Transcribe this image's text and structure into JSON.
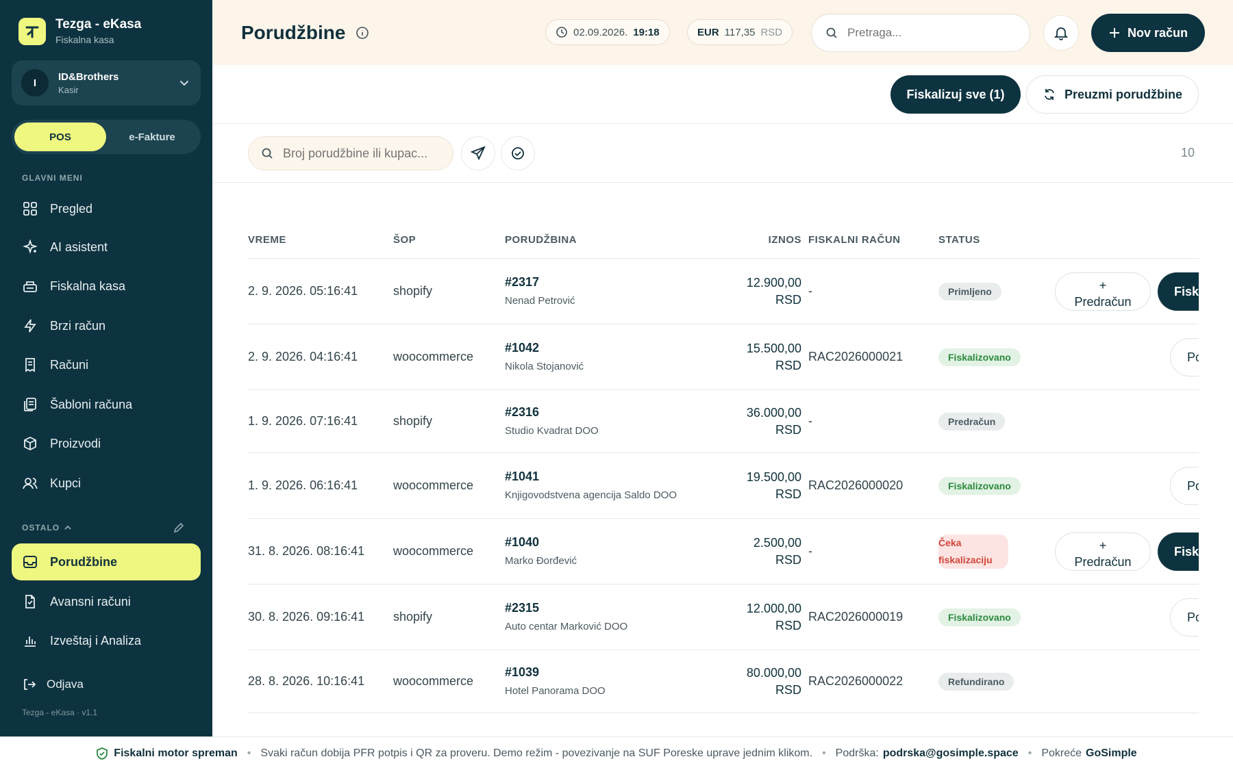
{
  "brand": {
    "title": "Tezga - eKasa",
    "subtitle": "Fiskalna kasa"
  },
  "account": {
    "initial": "I",
    "name": "ID&Brothers",
    "role": "Kasir"
  },
  "segment": {
    "pos": "POS",
    "efakture": "e-Fakture"
  },
  "sidebar": {
    "main_label": "GLAVNI MENI",
    "main_items": [
      {
        "label": "Pregled",
        "icon": "grid-icon"
      },
      {
        "label": "AI asistent",
        "icon": "sparkle-icon"
      },
      {
        "label": "Fiskalna kasa",
        "icon": "register-icon"
      },
      {
        "label": "Brzi račun",
        "icon": "bolt-icon"
      },
      {
        "label": "Računi",
        "icon": "receipt-icon"
      },
      {
        "label": "Šabloni računa",
        "icon": "templates-icon"
      },
      {
        "label": "Proizvodi",
        "icon": "box-icon"
      },
      {
        "label": "Kupci",
        "icon": "users-icon"
      }
    ],
    "other_label": "OSTALO",
    "other_items": [
      {
        "label": "Porudžbine",
        "icon": "inbox-icon",
        "active": true
      },
      {
        "label": "Avansni računi",
        "icon": "document-icon"
      },
      {
        "label": "Izveštaj i Analiza",
        "icon": "chart-icon"
      }
    ],
    "logout": "Odjava",
    "version": "Tezga - eKasa · v1.1"
  },
  "header": {
    "title": "Porudžbine",
    "date": "02.09.2026.",
    "time": "19:18",
    "currency": "EUR",
    "rate": "117,35",
    "rate_unit": "RSD",
    "search_placeholder": "Pretraga...",
    "new_button": "Nov račun"
  },
  "actions": {
    "fiscalize_all": "Fiskalizuj sve (1)",
    "fetch_orders": "Preuzmi porudžbine"
  },
  "filters": {
    "search_placeholder": "Broj porudžbine ili kupac...",
    "count": "10"
  },
  "table": {
    "columns": [
      "VREME",
      "ŠOP",
      "PORUDŽBINA",
      "IZNOS",
      "FISKALNI RAČUN",
      "STATUS"
    ],
    "rows": [
      {
        "time": "2. 9. 2026. 05:16:41",
        "shop": "shopify",
        "order": "#2317",
        "customer": "Nenad Petrović",
        "amount": "12.900,00",
        "currency": "RSD",
        "receipt": "-",
        "status": "Primljeno",
        "status_type": "gray",
        "actions": [
          "predracun",
          "fisk"
        ]
      },
      {
        "time": "2. 9. 2026. 04:16:41",
        "shop": "woocommerce",
        "order": "#1042",
        "customer": "Nikola Stojanović",
        "amount": "15.500,00",
        "currency": "RSD",
        "receipt": "RAC2026000021",
        "status": "Fiskalizovano",
        "status_type": "green",
        "actions": [
          "po"
        ]
      },
      {
        "time": "1. 9. 2026. 07:16:41",
        "shop": "shopify",
        "order": "#2316",
        "customer": "Studio Kvadrat DOO",
        "amount": "36.000,00",
        "currency": "RSD",
        "receipt": "-",
        "status": "Predračun",
        "status_type": "gray",
        "actions": []
      },
      {
        "time": "1. 9. 2026. 06:16:41",
        "shop": "woocommerce",
        "order": "#1041",
        "customer": "Knjigovodstvena agencija Saldo DOO",
        "amount": "19.500,00",
        "currency": "RSD",
        "receipt": "RAC2026000020",
        "status": "Fiskalizovano",
        "status_type": "green",
        "actions": [
          "po"
        ]
      },
      {
        "time": "31. 8. 2026. 08:16:41",
        "shop": "woocommerce",
        "order": "#1040",
        "customer": "Marko Đorđević",
        "amount": "2.500,00",
        "currency": "RSD",
        "receipt": "-",
        "status": "Čeka fiskalizaciju",
        "status_type": "red",
        "actions": [
          "predracun",
          "fisk"
        ]
      },
      {
        "time": "30. 8. 2026. 09:16:41",
        "shop": "shopify",
        "order": "#2315",
        "customer": "Auto centar Marković DOO",
        "amount": "12.000,00",
        "currency": "RSD",
        "receipt": "RAC2026000019",
        "status": "Fiskalizovano",
        "status_type": "green",
        "actions": [
          "po"
        ]
      },
      {
        "time": "28. 8. 2026. 10:16:41",
        "shop": "woocommerce",
        "order": "#1039",
        "customer": "Hotel Panorama DOO",
        "amount": "80.000,00",
        "currency": "RSD",
        "receipt": "RAC2026000022",
        "status": "Refundirano",
        "status_type": "gray",
        "actions": []
      }
    ],
    "btn_predracun_plus": "+",
    "btn_predracun": "Predračun",
    "btn_fisk": "Fiska",
    "btn_po": "Po"
  },
  "footer": {
    "engine": "Fiskalni motor spreman",
    "info": "Svaki račun dobija PFR potpis i QR za proveru. Demo režim - povezivanje na SUF Poreske uprave jednim klikom.",
    "support_label": "Podrška:",
    "support_email": "podrska@gosimple.space",
    "powered_label": "Pokreće",
    "powered_by": "GoSimple"
  },
  "colors": {
    "sidebar": "#0e3340",
    "accent": "#eef780",
    "header_bg": "#fdf4ea",
    "green": "#2b8a3e",
    "red": "#d0453a"
  }
}
